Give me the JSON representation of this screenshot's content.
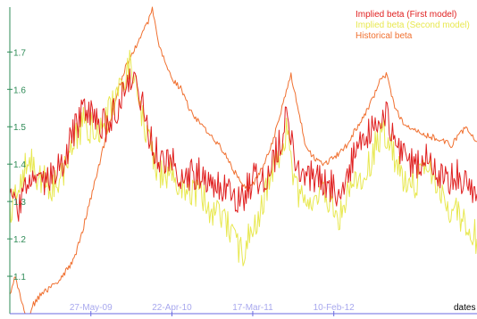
{
  "chart_data": {
    "type": "line",
    "xlabel": "dates",
    "ylabel": "",
    "ylim": [
      1.0,
      1.82
    ],
    "xlim": [
      "2008-07-01",
      "2013-09-15"
    ],
    "grid": false,
    "legend_position": "top-right",
    "y_ticks": [
      "1.1",
      "1.2",
      "1.3",
      "1.4",
      "1.5",
      "1.6",
      "1.7"
    ],
    "x_ticks": [
      {
        "label": "27-May-09",
        "date": "2009-05-27"
      },
      {
        "label": "22-Apr-10",
        "date": "2010-04-22"
      },
      {
        "label": "17-Mar-11",
        "date": "2011-03-17"
      },
      {
        "label": "10-Feb-12",
        "date": "2012-02-10"
      }
    ],
    "series": [
      {
        "name": "Implied beta (First model)",
        "color": "#e02020",
        "noise": 0.045,
        "points": [
          [
            "2008-07-01",
            1.3
          ],
          [
            "2008-08-01",
            1.27
          ],
          [
            "2008-09-15",
            1.36
          ],
          [
            "2008-11-01",
            1.33
          ],
          [
            "2008-12-15",
            1.37
          ],
          [
            "2009-02-01",
            1.4
          ],
          [
            "2009-03-15",
            1.48
          ],
          [
            "2009-05-01",
            1.55
          ],
          [
            "2009-06-15",
            1.52
          ],
          [
            "2009-08-01",
            1.5
          ],
          [
            "2009-09-15",
            1.56
          ],
          [
            "2009-11-01",
            1.64
          ],
          [
            "2009-12-15",
            1.58
          ],
          [
            "2010-02-01",
            1.45
          ],
          [
            "2010-03-15",
            1.4
          ],
          [
            "2010-05-01",
            1.4
          ],
          [
            "2010-06-15",
            1.36
          ],
          [
            "2010-08-01",
            1.38
          ],
          [
            "2010-10-01",
            1.35
          ],
          [
            "2010-12-01",
            1.33
          ],
          [
            "2011-02-01",
            1.31
          ],
          [
            "2011-03-17",
            1.36
          ],
          [
            "2011-05-01",
            1.35
          ],
          [
            "2011-06-15",
            1.42
          ],
          [
            "2011-08-01",
            1.52
          ],
          [
            "2011-09-15",
            1.38
          ],
          [
            "2011-11-01",
            1.37
          ],
          [
            "2012-01-01",
            1.36
          ],
          [
            "2012-03-01",
            1.32
          ],
          [
            "2012-05-01",
            1.42
          ],
          [
            "2012-07-01",
            1.48
          ],
          [
            "2012-09-01",
            1.55
          ],
          [
            "2012-11-01",
            1.44
          ],
          [
            "2013-01-01",
            1.4
          ],
          [
            "2013-03-01",
            1.42
          ],
          [
            "2013-05-01",
            1.36
          ],
          [
            "2013-07-01",
            1.37
          ],
          [
            "2013-09-15",
            1.32
          ]
        ]
      },
      {
        "name": "Implied beta (Second model)",
        "color": "#e8e850",
        "noise": 0.045,
        "points": [
          [
            "2008-07-01",
            1.28
          ],
          [
            "2008-08-01",
            1.32
          ],
          [
            "2008-09-15",
            1.42
          ],
          [
            "2008-11-01",
            1.36
          ],
          [
            "2008-12-15",
            1.34
          ],
          [
            "2009-02-01",
            1.38
          ],
          [
            "2009-03-15",
            1.45
          ],
          [
            "2009-05-01",
            1.52
          ],
          [
            "2009-06-15",
            1.48
          ],
          [
            "2009-08-01",
            1.52
          ],
          [
            "2009-09-15",
            1.6
          ],
          [
            "2009-11-01",
            1.66
          ],
          [
            "2009-12-15",
            1.55
          ],
          [
            "2010-02-01",
            1.42
          ],
          [
            "2010-03-15",
            1.36
          ],
          [
            "2010-05-01",
            1.38
          ],
          [
            "2010-06-15",
            1.3
          ],
          [
            "2010-08-01",
            1.33
          ],
          [
            "2010-10-01",
            1.28
          ],
          [
            "2010-12-01",
            1.24
          ],
          [
            "2011-02-01",
            1.16
          ],
          [
            "2011-03-17",
            1.22
          ],
          [
            "2011-05-01",
            1.3
          ],
          [
            "2011-06-15",
            1.4
          ],
          [
            "2011-08-01",
            1.48
          ],
          [
            "2011-09-15",
            1.32
          ],
          [
            "2011-11-01",
            1.3
          ],
          [
            "2012-01-01",
            1.32
          ],
          [
            "2012-03-01",
            1.26
          ],
          [
            "2012-05-01",
            1.35
          ],
          [
            "2012-07-01",
            1.4
          ],
          [
            "2012-09-01",
            1.5
          ],
          [
            "2012-11-01",
            1.38
          ],
          [
            "2013-01-01",
            1.35
          ],
          [
            "2013-03-01",
            1.4
          ],
          [
            "2013-05-01",
            1.3
          ],
          [
            "2013-07-01",
            1.26
          ],
          [
            "2013-09-15",
            1.2
          ]
        ]
      },
      {
        "name": "Historical beta",
        "color": "#f07030",
        "noise": 0.008,
        "points": [
          [
            "2008-07-01",
            1.05
          ],
          [
            "2008-07-20",
            1.1
          ],
          [
            "2008-08-15",
            1.04
          ],
          [
            "2008-09-10",
            0.98
          ],
          [
            "2008-10-01",
            1.02
          ],
          [
            "2008-11-01",
            1.05
          ],
          [
            "2008-12-15",
            1.07
          ],
          [
            "2009-02-01",
            1.1
          ],
          [
            "2009-03-15",
            1.14
          ],
          [
            "2009-04-15",
            1.2
          ],
          [
            "2009-05-15",
            1.28
          ],
          [
            "2009-06-15",
            1.36
          ],
          [
            "2009-07-15",
            1.44
          ],
          [
            "2009-08-15",
            1.52
          ],
          [
            "2009-09-15",
            1.6
          ],
          [
            "2009-10-15",
            1.66
          ],
          [
            "2009-11-15",
            1.7
          ],
          [
            "2009-12-15",
            1.74
          ],
          [
            "2010-01-15",
            1.78
          ],
          [
            "2010-02-01",
            1.82
          ],
          [
            "2010-03-01",
            1.72
          ],
          [
            "2010-04-01",
            1.66
          ],
          [
            "2010-05-01",
            1.62
          ],
          [
            "2010-06-01",
            1.6
          ],
          [
            "2010-07-01",
            1.55
          ],
          [
            "2010-08-01",
            1.52
          ],
          [
            "2010-09-01",
            1.5
          ],
          [
            "2010-10-01",
            1.47
          ],
          [
            "2010-11-01",
            1.45
          ],
          [
            "2010-12-01",
            1.42
          ],
          [
            "2011-01-01",
            1.38
          ],
          [
            "2011-02-01",
            1.35
          ],
          [
            "2011-03-01",
            1.33
          ],
          [
            "2011-04-01",
            1.36
          ],
          [
            "2011-05-01",
            1.4
          ],
          [
            "2011-06-01",
            1.45
          ],
          [
            "2011-07-01",
            1.52
          ],
          [
            "2011-08-01",
            1.6
          ],
          [
            "2011-08-20",
            1.64
          ],
          [
            "2011-09-15",
            1.56
          ],
          [
            "2011-10-15",
            1.46
          ],
          [
            "2011-11-15",
            1.42
          ],
          [
            "2012-01-01",
            1.4
          ],
          [
            "2012-02-15",
            1.42
          ],
          [
            "2012-04-01",
            1.45
          ],
          [
            "2012-05-15",
            1.5
          ],
          [
            "2012-07-01",
            1.55
          ],
          [
            "2012-08-15",
            1.62
          ],
          [
            "2012-09-15",
            1.64
          ],
          [
            "2012-10-15",
            1.55
          ],
          [
            "2012-12-01",
            1.5
          ],
          [
            "2013-02-01",
            1.48
          ],
          [
            "2013-04-01",
            1.47
          ],
          [
            "2013-06-01",
            1.45
          ],
          [
            "2013-08-01",
            1.5
          ],
          [
            "2013-09-15",
            1.46
          ]
        ]
      }
    ]
  }
}
